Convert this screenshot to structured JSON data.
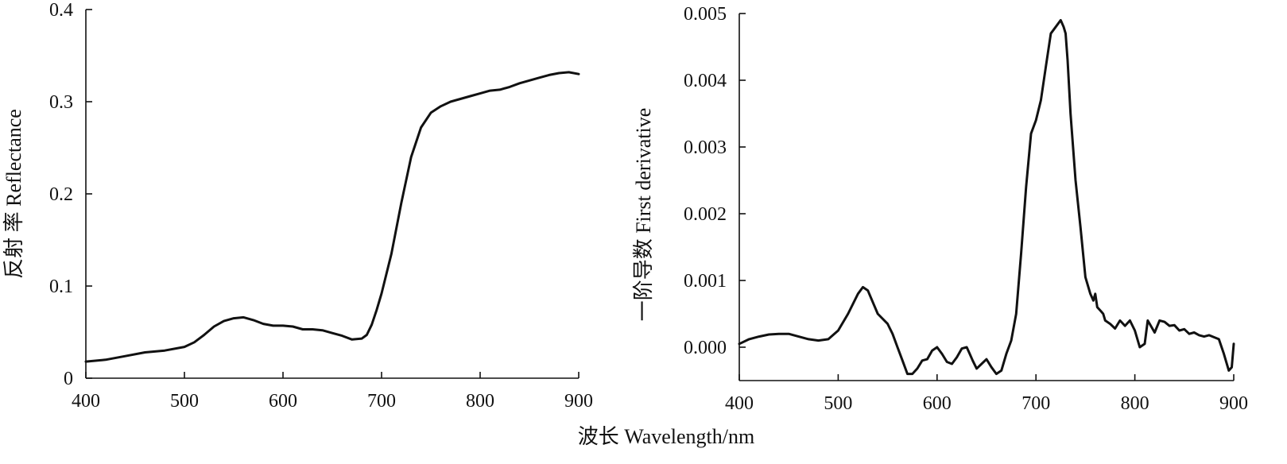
{
  "shared_xlabel": "波长 Wavelength/nm",
  "chart_data": [
    {
      "type": "line",
      "ylabel": "反射 率 Reflectance",
      "xlim": [
        400,
        900
      ],
      "ylim": [
        0,
        0.4
      ],
      "x_ticks": [
        400,
        500,
        600,
        700,
        800,
        900
      ],
      "x_tick_labels": [
        "400",
        "500",
        "600",
        "700",
        "800",
        "900"
      ],
      "y_ticks": [
        0,
        0.1,
        0.2,
        0.3,
        0.4
      ],
      "y_tick_labels": [
        "0",
        "0.1",
        "0.2",
        "0.3",
        "0.4"
      ],
      "grid": false,
      "series": [
        {
          "x": [
            400,
            420,
            440,
            460,
            480,
            500,
            510,
            520,
            530,
            540,
            550,
            560,
            570,
            580,
            590,
            600,
            610,
            620,
            630,
            640,
            650,
            660,
            670,
            680,
            685,
            690,
            695,
            700,
            710,
            720,
            730,
            740,
            750,
            760,
            770,
            780,
            790,
            800,
            810,
            820,
            830,
            840,
            850,
            860,
            870,
            880,
            890,
            900
          ],
          "y": [
            0.018,
            0.02,
            0.024,
            0.028,
            0.03,
            0.034,
            0.039,
            0.047,
            0.056,
            0.062,
            0.065,
            0.066,
            0.063,
            0.059,
            0.057,
            0.057,
            0.056,
            0.053,
            0.053,
            0.052,
            0.049,
            0.046,
            0.042,
            0.043,
            0.047,
            0.058,
            0.074,
            0.092,
            0.135,
            0.19,
            0.24,
            0.272,
            0.288,
            0.295,
            0.3,
            0.303,
            0.306,
            0.309,
            0.312,
            0.313,
            0.316,
            0.32,
            0.323,
            0.326,
            0.329,
            0.331,
            0.332,
            0.33
          ]
        }
      ]
    },
    {
      "type": "line",
      "ylabel": "一阶导数 First derivative",
      "xlim": [
        400,
        900
      ],
      "ylim": [
        -0.0005,
        0.005
      ],
      "x_ticks": [
        400,
        500,
        600,
        700,
        800,
        900
      ],
      "x_tick_labels": [
        "400",
        "500",
        "600",
        "700",
        "800",
        "900"
      ],
      "y_ticks": [
        0.0,
        0.001,
        0.002,
        0.003,
        0.004,
        0.005
      ],
      "y_tick_labels": [
        "0.000",
        "0.001",
        "0.002",
        "0.003",
        "0.004",
        "0.005"
      ],
      "grid": false,
      "series": [
        {
          "x": [
            400,
            410,
            420,
            430,
            440,
            450,
            460,
            470,
            480,
            490,
            500,
            510,
            520,
            525,
            530,
            540,
            550,
            555,
            560,
            565,
            570,
            575,
            580,
            585,
            590,
            595,
            600,
            605,
            610,
            615,
            620,
            625,
            630,
            633,
            636,
            640,
            645,
            650,
            655,
            660,
            665,
            670,
            675,
            680,
            685,
            690,
            695,
            700,
            705,
            710,
            715,
            720,
            725,
            728,
            730,
            732,
            735,
            740,
            745,
            750,
            755,
            758,
            760,
            762,
            765,
            768,
            770,
            775,
            780,
            785,
            790,
            795,
            800,
            805,
            810,
            813,
            815,
            820,
            825,
            830,
            835,
            840,
            845,
            850,
            855,
            860,
            865,
            870,
            875,
            880,
            885,
            890,
            895,
            898,
            900
          ],
          "y": [
            5e-05,
            0.00012,
            0.00016,
            0.00019,
            0.0002,
            0.0002,
            0.00016,
            0.00012,
            0.0001,
            0.00012,
            0.00025,
            0.0005,
            0.0008,
            0.0009,
            0.00085,
            0.0005,
            0.00035,
            0.0002,
            0.0,
            -0.0002,
            -0.0004,
            -0.0004,
            -0.00032,
            -0.0002,
            -0.00018,
            -5e-05,
            0.0,
            -0.0001,
            -0.00022,
            -0.00025,
            -0.00015,
            -2e-05,
            0.0,
            -0.0001,
            -0.0002,
            -0.00032,
            -0.00025,
            -0.00018,
            -0.0003,
            -0.0004,
            -0.00035,
            -0.0001,
            0.0001,
            0.0005,
            0.0014,
            0.0024,
            0.0032,
            0.0034,
            0.0037,
            0.0042,
            0.0047,
            0.0048,
            0.0049,
            0.0048,
            0.0047,
            0.0043,
            0.0035,
            0.0025,
            0.0018,
            0.00105,
            0.0008,
            0.0007,
            0.0008,
            0.0006,
            0.00055,
            0.0005,
            0.0004,
            0.00035,
            0.00028,
            0.0004,
            0.00032,
            0.0004,
            0.00025,
            0.0,
            5e-05,
            0.0004,
            0.00035,
            0.00022,
            0.0004,
            0.00038,
            0.00032,
            0.00033,
            0.00025,
            0.00027,
            0.0002,
            0.00022,
            0.00018,
            0.00016,
            0.00018,
            0.00015,
            0.00012,
            -0.0001,
            -0.00035,
            -0.0003,
            5e-05
          ]
        }
      ]
    }
  ]
}
